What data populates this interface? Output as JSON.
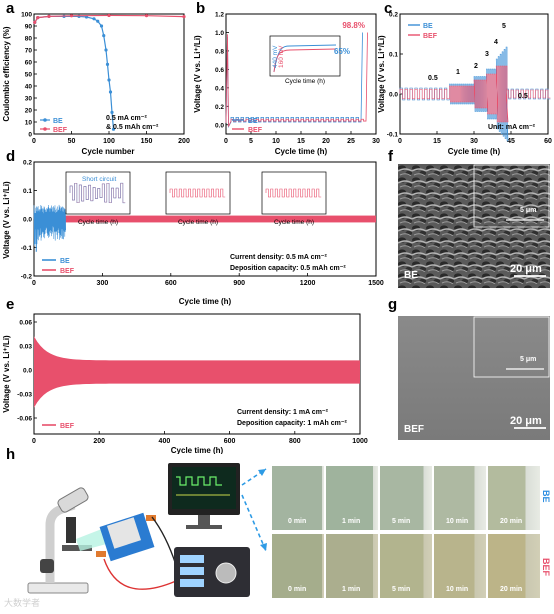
{
  "panels": {
    "a": {
      "label": "a"
    },
    "b": {
      "label": "b"
    },
    "c": {
      "label": "c"
    },
    "d": {
      "label": "d"
    },
    "e": {
      "label": "e"
    },
    "f": {
      "label": "f"
    },
    "g": {
      "label": "g"
    },
    "h": {
      "label": "h"
    }
  },
  "colors": {
    "BE": "#3b8fd6",
    "BEF": "#e8506c",
    "axis": "#000000"
  },
  "panel_a": {
    "ylabel": "Coulombic efficiency (%)",
    "xlabel": "Cycle number",
    "condition": [
      "0.5 mA cm⁻²",
      "& 0.5 mAh cm⁻²"
    ],
    "legend": [
      "BE",
      "BEF"
    ]
  },
  "panel_b": {
    "ylabel": "Voltage (V vs. Li⁺/Li)",
    "xlabel": "Cycle time (h)",
    "annot_bef": "98.8%",
    "annot_be": "65%",
    "inset_xlabel": "Cycle time (h)",
    "inset_ylabel": "Voltage (V)",
    "inset_annot": [
      "160 mV",
      "440 mV"
    ],
    "legend": [
      "BE",
      "BEF"
    ]
  },
  "panel_c": {
    "ylabel": "Voltage (V vs. Li⁺/Li)",
    "xlabel": "Cycle time (h)",
    "rates": [
      "0.5",
      "1",
      "2",
      "3",
      "4",
      "5",
      "0.5"
    ],
    "unit": "Unit: mA cm⁻²",
    "legend": [
      "BE",
      "BEF"
    ]
  },
  "panel_d": {
    "ylabel": "Voltage (V vs. Li⁺/Li)",
    "xlabel": "Cycle time (h)",
    "legend": [
      "BE",
      "BEF"
    ],
    "text1": "Current density: 0.5 mA cm⁻²",
    "text2": "Deposition capacity: 0.5 mAh cm⁻²",
    "short_circuit": "Short circuit",
    "inset_ylabel": "Voltage (V vs. Li⁺/Li)",
    "inset_xlabel": "Cycle time (h)"
  },
  "panel_e": {
    "ylabel": "Voltage (V vs. Li⁺/Li)",
    "xlabel": "Cycle time (h)",
    "legend": [
      "BEF"
    ],
    "text1": "Current density: 1 mA cm⁻²",
    "text2": "Deposition capacity: 1 mAh cm⁻²"
  },
  "panel_f": {
    "tag": "BE",
    "scale": "20 μm",
    "inset_scale": "5 μm"
  },
  "panel_g": {
    "tag": "BEF",
    "scale": "20 μm",
    "inset_scale": "5 μm"
  },
  "panel_h": {
    "row_labels": [
      "BE",
      "BEF"
    ],
    "times": [
      "0 min",
      "1 min",
      "5 min",
      "10 min",
      "20 min"
    ]
  },
  "watermark": "大数学者",
  "chart_data": [
    {
      "id": "a",
      "type": "scatter",
      "xlabel": "Cycle number",
      "ylabel": "Coulombic efficiency (%)",
      "xlim": [
        0,
        200
      ],
      "ylim": [
        0,
        100
      ],
      "xticks": [
        0,
        50,
        100,
        150,
        200
      ],
      "yticks": [
        0,
        10,
        20,
        30,
        40,
        50,
        60,
        70,
        80,
        90,
        100
      ],
      "series": [
        {
          "name": "BE",
          "x": [
            1,
            5,
            20,
            40,
            60,
            70,
            80,
            85,
            90,
            93,
            96,
            98,
            100,
            102,
            104,
            106
          ],
          "y": [
            93,
            97,
            98,
            98,
            98,
            97.5,
            96,
            94,
            90,
            82,
            70,
            58,
            45,
            35,
            18,
            4
          ]
        },
        {
          "name": "BEF",
          "x": [
            1,
            5,
            20,
            50,
            100,
            150,
            200
          ],
          "y": [
            93,
            97,
            98,
            98.5,
            98.8,
            98.6,
            97.8
          ]
        }
      ]
    },
    {
      "id": "b",
      "type": "line",
      "xlabel": "Cycle time (h)",
      "ylabel": "Voltage (V vs. Li⁺/Li)",
      "xlim": [
        0,
        30
      ],
      "ylim": [
        -0.1,
        1.2
      ],
      "xticks": [
        0,
        5,
        10,
        15,
        20,
        25,
        30
      ],
      "yticks": [
        0.0,
        0.2,
        0.4,
        0.6,
        0.8,
        1.0,
        1.2
      ]
    },
    {
      "id": "c",
      "type": "line",
      "xlabel": "Cycle time (h)",
      "ylabel": "Voltage (V vs. Li⁺/Li)",
      "xlim": [
        0,
        60
      ],
      "ylim": [
        -0.1,
        0.2
      ],
      "xticks": [
        0,
        15,
        30,
        45,
        60
      ],
      "yticks": [
        -0.1,
        0.0,
        0.1,
        0.2
      ]
    },
    {
      "id": "d",
      "type": "line",
      "xlabel": "Cycle time (h)",
      "ylabel": "Voltage (V vs. Li⁺/Li)",
      "xlim": [
        0,
        1500
      ],
      "ylim": [
        -0.2,
        0.2
      ],
      "xticks": [
        0,
        300,
        600,
        900,
        1200,
        1500
      ],
      "yticks": [
        -0.2,
        -0.1,
        0.0,
        0.1,
        0.2
      ]
    },
    {
      "id": "e",
      "type": "line",
      "xlabel": "Cycle time (h)",
      "ylabel": "Voltage (V vs. Li⁺/Li)",
      "xlim": [
        0,
        1000
      ],
      "ylim": [
        -0.08,
        0.07
      ],
      "xticks": [
        0,
        200,
        400,
        600,
        800,
        1000
      ],
      "yticks": [
        -0.06,
        -0.03,
        0.0,
        0.03,
        0.06
      ]
    }
  ]
}
